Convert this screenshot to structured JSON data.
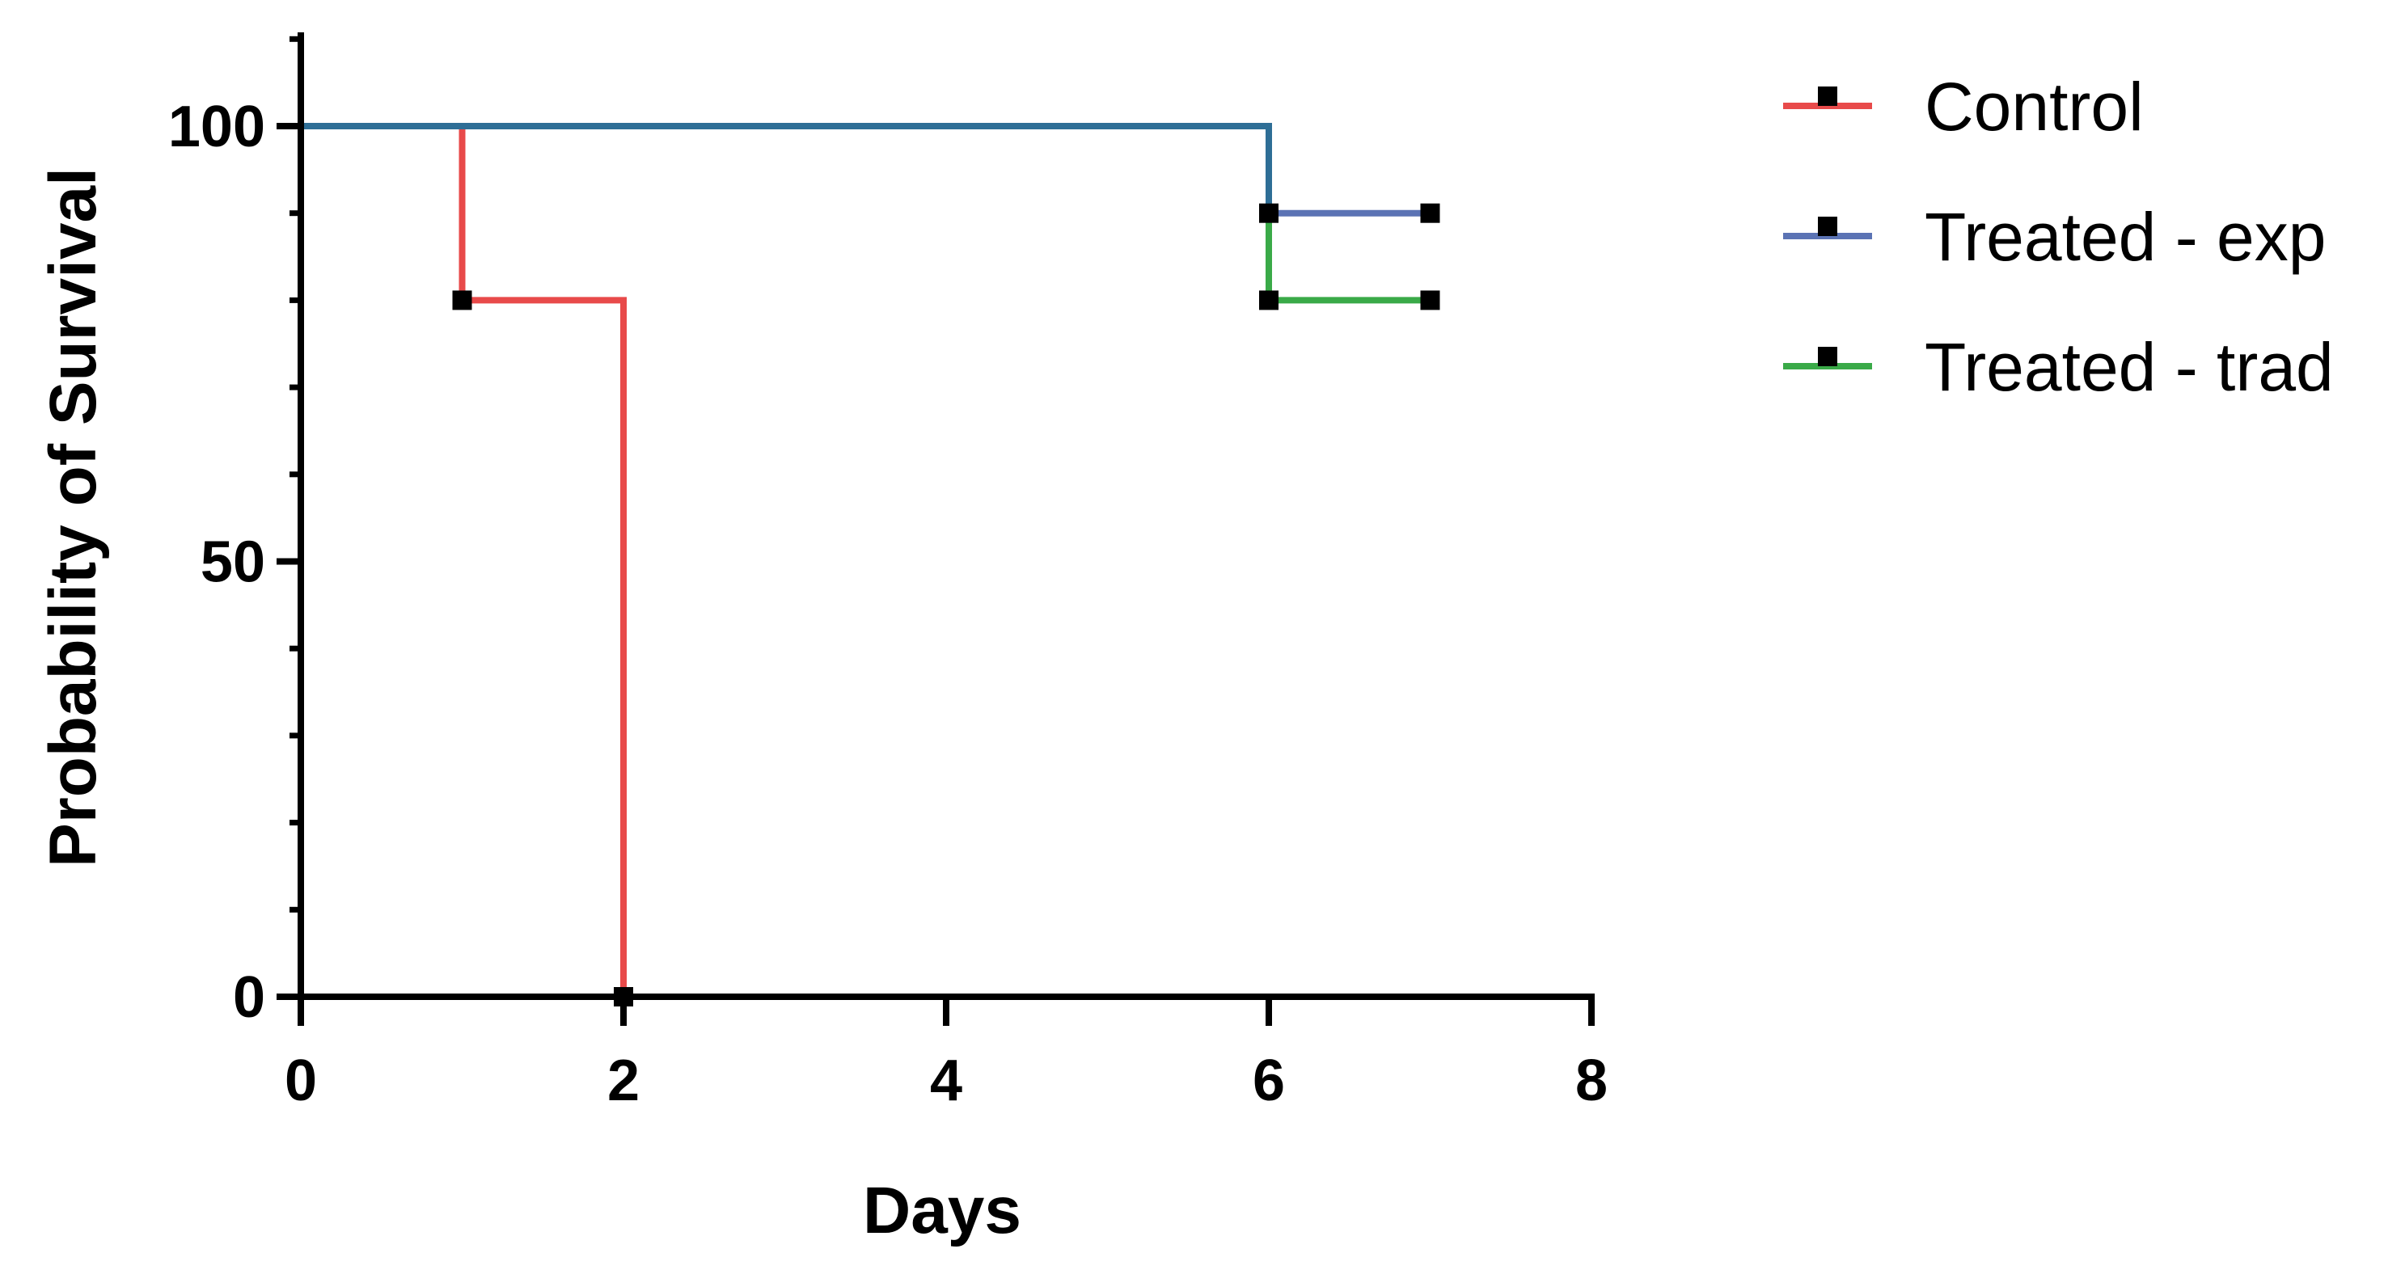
{
  "chart_data": {
    "type": "line",
    "subtype": "kaplan-meier survival (step)",
    "xlabel": "Days",
    "ylabel": "Probability of Survival",
    "xlim": [
      0,
      8
    ],
    "ylim": [
      0,
      100
    ],
    "x_ticks": [
      0,
      2,
      4,
      6,
      8
    ],
    "y_ticks": [
      0,
      50,
      100
    ],
    "grid": false,
    "legend_position": "top-right, outside plot",
    "series": [
      {
        "name": "Control",
        "color": "#e84a4a",
        "steps": [
          {
            "x": 0,
            "y": 100
          },
          {
            "x": 1,
            "y": 80
          },
          {
            "x": 2,
            "y": 0
          }
        ],
        "markers": [
          {
            "x": 1,
            "y": 80
          },
          {
            "x": 2,
            "y": 0
          }
        ]
      },
      {
        "name": "Treated - exp",
        "color": "#5b73b4",
        "steps": [
          {
            "x": 0,
            "y": 100
          },
          {
            "x": 6,
            "y": 90
          },
          {
            "x": 7,
            "y": 90
          }
        ],
        "markers": [
          {
            "x": 6,
            "y": 90
          },
          {
            "x": 7,
            "y": 90
          }
        ]
      },
      {
        "name": "Treated - trad",
        "color": "#3aaa48",
        "steps": [
          {
            "x": 0,
            "y": 100
          },
          {
            "x": 6,
            "y": 80
          },
          {
            "x": 7,
            "y": 80
          }
        ],
        "markers": [
          {
            "x": 6,
            "y": 80
          },
          {
            "x": 7,
            "y": 80
          }
        ]
      }
    ],
    "overlap_color": "#2e6e96"
  }
}
